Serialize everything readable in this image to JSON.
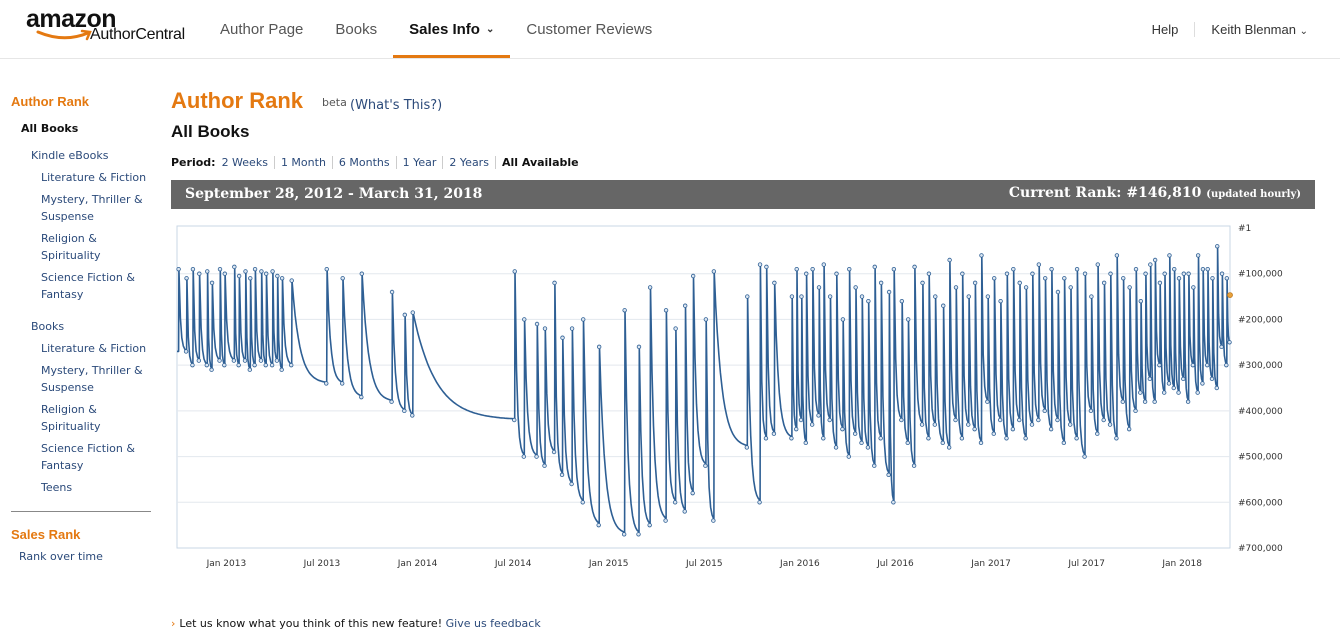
{
  "header": {
    "logo_amazon": "amazon",
    "logo_sub": "AuthorCentral",
    "tabs": [
      {
        "label": "Author Page"
      },
      {
        "label": "Books"
      },
      {
        "label": "Sales Info",
        "active": true
      },
      {
        "label": "Customer Reviews"
      }
    ],
    "help": "Help",
    "user": "Keith Blenman",
    "accent": "#e47911"
  },
  "sidebar": {
    "author_rank_heading": "Author Rank",
    "all_books": "All Books",
    "kindle_heading": "Kindle eBooks",
    "kindle_items": [
      {
        "line1": "Literature & Fiction",
        "line2": ""
      },
      {
        "line1": "Mystery, Thriller &",
        "line2": "Suspense"
      },
      {
        "line1": "Religion &",
        "line2": "Spirituality"
      },
      {
        "line1": "Science Fiction &",
        "line2": "Fantasy"
      }
    ],
    "books_heading": "Books",
    "books_items": [
      {
        "line1": "Literature & Fiction",
        "line2": ""
      },
      {
        "line1": "Mystery, Thriller &",
        "line2": "Suspense"
      },
      {
        "line1": "Religion &",
        "line2": "Spirituality"
      },
      {
        "line1": "Science Fiction &",
        "line2": "Fantasy"
      },
      {
        "line1": "Teens",
        "line2": ""
      }
    ],
    "sales_rank_heading": "Sales Rank",
    "rank_over_time": "Rank over time"
  },
  "main": {
    "title": "Author Rank",
    "beta": "beta",
    "whats_this": "(What's This?)",
    "subtitle": "All Books",
    "period_label": "Period:",
    "periods": [
      "2 Weeks",
      "1 Month",
      "6 Months",
      "1 Year",
      "2 Years",
      "All Available"
    ],
    "selected_period": "All Available",
    "date_range": "September 28, 2012 - March 31, 2018",
    "current_rank_label": "Current Rank: #146,810",
    "updated": "(updated hourly)",
    "feedback_text": "Let us know what you think of this new feature!",
    "feedback_link": "Give us feedback"
  },
  "chart_data": {
    "type": "line",
    "title": "Author Rank - All Books",
    "series_color": "#2e5f94",
    "y_inverted": true,
    "ylim": [
      1,
      700000
    ],
    "y_ticks": [
      1,
      100000,
      200000,
      300000,
      400000,
      500000,
      600000,
      700000
    ],
    "y_tick_labels": [
      "#1",
      "#100,000",
      "#200,000",
      "#300,000",
      "#400,000",
      "#500,000",
      "#600,000",
      "#700,000"
    ],
    "x_range": [
      "2012-09-28",
      "2018-03-31"
    ],
    "x_tick_labels": [
      "Jan 2013",
      "Jul 2013",
      "Jan 2014",
      "Jul 2014",
      "Jan 2015",
      "Jul 2015",
      "Jan 2016",
      "Jul 2016",
      "Jan 2017",
      "Jul 2017",
      "Jan 2018"
    ],
    "x_tick_months": [
      3.1,
      9.1,
      15.1,
      21.1,
      27.1,
      33.1,
      39.1,
      45.1,
      51.1,
      57.1,
      63.1
    ],
    "total_months": 66.1,
    "spikes_months": [
      0.1,
      0.6,
      1.0,
      1.4,
      1.9,
      2.2,
      2.7,
      3.0,
      3.6,
      3.9,
      4.3,
      4.6,
      4.9,
      5.3,
      5.6,
      6.0,
      6.3,
      6.6,
      7.2,
      9.4,
      10.4,
      11.6,
      13.5,
      14.3,
      14.8,
      21.2,
      21.8,
      22.6,
      23.1,
      23.7,
      24.2,
      24.8,
      25.5,
      26.5,
      28.1,
      29.0,
      29.7,
      30.7,
      31.3,
      31.9,
      32.4,
      33.2,
      33.7,
      35.8,
      36.6,
      37.0,
      37.5,
      38.6,
      38.9,
      39.2,
      39.5,
      39.9,
      40.3,
      40.6,
      41.0,
      41.4,
      41.8,
      42.2,
      42.6,
      43.0,
      43.4,
      43.8,
      44.2,
      44.7,
      45.0,
      45.5,
      45.9,
      46.3,
      46.8,
      47.2,
      47.6,
      48.1,
      48.5,
      48.9,
      49.3,
      49.7,
      50.1,
      50.5,
      50.9,
      51.3,
      51.7,
      52.1,
      52.5,
      52.9,
      53.3,
      53.7,
      54.1,
      54.5,
      54.9,
      55.3,
      55.7,
      56.1,
      56.5,
      57.0,
      57.4,
      57.8,
      58.2,
      58.6,
      59.0,
      59.4,
      59.8,
      60.2,
      60.5,
      60.8,
      61.1,
      61.4,
      61.7,
      62.0,
      62.3,
      62.6,
      62.9,
      63.2,
      63.5,
      63.8,
      64.1,
      64.4,
      64.7,
      65.0,
      65.3,
      65.6,
      65.9
    ],
    "spike_peaks": [
      90000,
      110000,
      90000,
      100000,
      95000,
      120000,
      90000,
      100000,
      85000,
      105000,
      95000,
      110000,
      90000,
      95000,
      100000,
      95000,
      105000,
      110000,
      115000,
      90000,
      110000,
      100000,
      140000,
      190000,
      185000,
      95000,
      200000,
      210000,
      220000,
      120000,
      240000,
      220000,
      200000,
      260000,
      180000,
      260000,
      130000,
      180000,
      220000,
      170000,
      105000,
      200000,
      95000,
      150000,
      80000,
      85000,
      120000,
      150000,
      90000,
      150000,
      100000,
      90000,
      130000,
      80000,
      150000,
      100000,
      200000,
      90000,
      130000,
      150000,
      160000,
      85000,
      120000,
      140000,
      90000,
      160000,
      200000,
      85000,
      120000,
      100000,
      150000,
      170000,
      70000,
      130000,
      100000,
      150000,
      120000,
      60000,
      150000,
      110000,
      160000,
      100000,
      90000,
      120000,
      130000,
      100000,
      80000,
      110000,
      90000,
      140000,
      110000,
      130000,
      90000,
      100000,
      150000,
      80000,
      120000,
      100000,
      60000,
      110000,
      130000,
      90000,
      160000,
      100000,
      80000,
      70000,
      120000,
      100000,
      60000,
      90000,
      110000,
      100000,
      100000,
      130000,
      60000,
      90000,
      90000,
      110000,
      40000,
      100000,
      110000
    ],
    "spike_troughs": [
      270000,
      300000,
      290000,
      300000,
      310000,
      290000,
      300000,
      290000,
      300000,
      290000,
      310000,
      300000,
      290000,
      300000,
      300000,
      290000,
      310000,
      300000,
      340000,
      340000,
      370000,
      380000,
      400000,
      410000,
      420000,
      500000,
      500000,
      520000,
      490000,
      540000,
      560000,
      600000,
      650000,
      670000,
      670000,
      650000,
      640000,
      600000,
      620000,
      580000,
      520000,
      640000,
      480000,
      600000,
      460000,
      450000,
      460000,
      440000,
      420000,
      470000,
      430000,
      410000,
      460000,
      420000,
      480000,
      440000,
      500000,
      450000,
      470000,
      480000,
      520000,
      460000,
      540000,
      600000,
      420000,
      470000,
      520000,
      430000,
      460000,
      430000,
      470000,
      480000,
      420000,
      460000,
      430000,
      440000,
      470000,
      380000,
      450000,
      420000,
      460000,
      440000,
      420000,
      460000,
      430000,
      420000,
      400000,
      440000,
      420000,
      470000,
      430000,
      460000,
      500000,
      400000,
      450000,
      420000,
      430000,
      460000,
      380000,
      440000,
      400000,
      360000,
      380000,
      330000,
      380000,
      300000,
      360000,
      340000,
      350000,
      360000,
      330000,
      380000,
      300000,
      360000,
      340000,
      300000,
      330000,
      350000,
      260000,
      300000,
      250000
    ]
  }
}
